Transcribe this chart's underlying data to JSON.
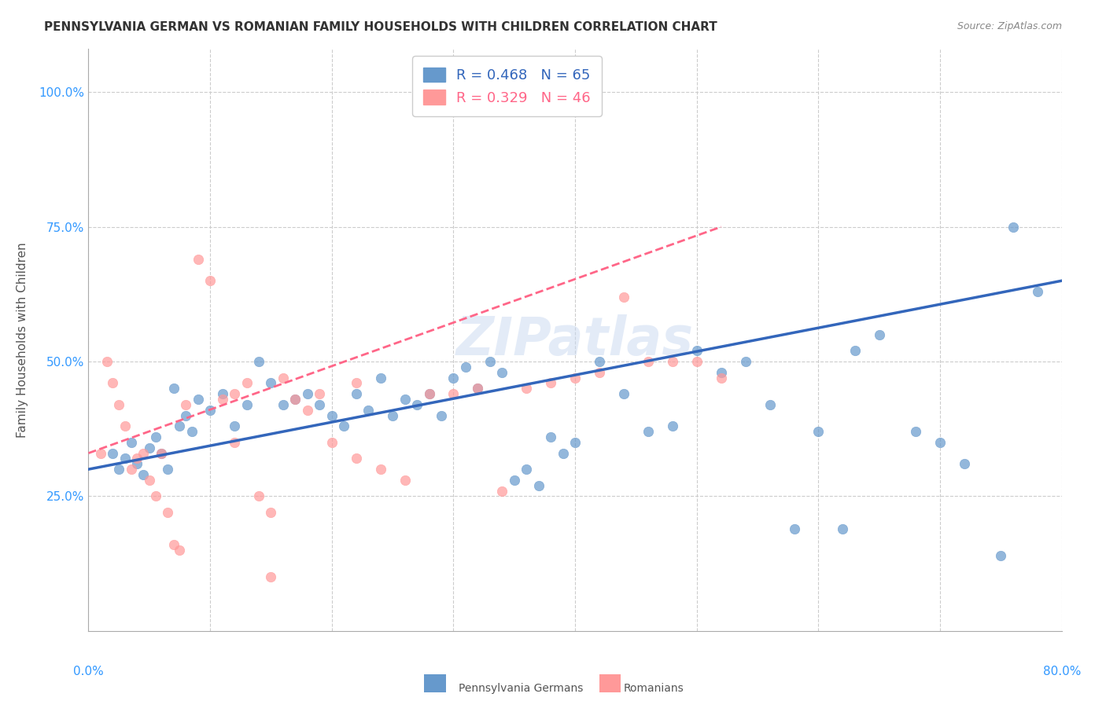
{
  "title": "PENNSYLVANIA GERMAN VS ROMANIAN FAMILY HOUSEHOLDS WITH CHILDREN CORRELATION CHART",
  "source": "Source: ZipAtlas.com",
  "ylabel": "Family Households with Children",
  "ytick_labels": [
    "25.0%",
    "50.0%",
    "75.0%",
    "100.0%"
  ],
  "ytick_values": [
    0.25,
    0.5,
    0.75,
    1.0
  ],
  "xmin": 0.0,
  "xmax": 0.8,
  "ymin": 0.0,
  "ymax": 1.08,
  "legend_line1": "R = 0.468   N = 65",
  "legend_line2": "R = 0.329   N = 46",
  "pa_german_color": "#6699cc",
  "romanian_color": "#ff9999",
  "pa_german_line_color": "#3366bb",
  "romanian_line_color": "#ff6688",
  "watermark": "ZIPatlas",
  "pa_german_scatter_x": [
    0.02,
    0.025,
    0.03,
    0.035,
    0.04,
    0.045,
    0.05,
    0.055,
    0.06,
    0.065,
    0.07,
    0.075,
    0.08,
    0.085,
    0.09,
    0.1,
    0.11,
    0.12,
    0.13,
    0.14,
    0.15,
    0.16,
    0.17,
    0.18,
    0.19,
    0.2,
    0.21,
    0.22,
    0.23,
    0.24,
    0.25,
    0.26,
    0.27,
    0.28,
    0.29,
    0.3,
    0.31,
    0.32,
    0.33,
    0.34,
    0.35,
    0.36,
    0.37,
    0.38,
    0.39,
    0.4,
    0.42,
    0.44,
    0.46,
    0.48,
    0.5,
    0.52,
    0.54,
    0.56,
    0.58,
    0.6,
    0.62,
    0.65,
    0.68,
    0.7,
    0.72,
    0.75,
    0.78,
    0.76,
    0.63
  ],
  "pa_german_scatter_y": [
    0.33,
    0.3,
    0.32,
    0.35,
    0.31,
    0.29,
    0.34,
    0.36,
    0.33,
    0.3,
    0.45,
    0.38,
    0.4,
    0.37,
    0.43,
    0.41,
    0.44,
    0.38,
    0.42,
    0.5,
    0.46,
    0.42,
    0.43,
    0.44,
    0.42,
    0.4,
    0.38,
    0.44,
    0.41,
    0.47,
    0.4,
    0.43,
    0.42,
    0.44,
    0.4,
    0.47,
    0.49,
    0.45,
    0.5,
    0.48,
    0.28,
    0.3,
    0.27,
    0.36,
    0.33,
    0.35,
    0.5,
    0.44,
    0.37,
    0.38,
    0.52,
    0.48,
    0.5,
    0.42,
    0.19,
    0.37,
    0.19,
    0.55,
    0.37,
    0.35,
    0.31,
    0.14,
    0.63,
    0.75,
    0.52
  ],
  "romanian_scatter_x": [
    0.01,
    0.015,
    0.02,
    0.025,
    0.03,
    0.035,
    0.04,
    0.045,
    0.05,
    0.055,
    0.06,
    0.065,
    0.07,
    0.075,
    0.08,
    0.09,
    0.1,
    0.11,
    0.12,
    0.13,
    0.14,
    0.15,
    0.16,
    0.17,
    0.18,
    0.19,
    0.2,
    0.22,
    0.24,
    0.26,
    0.28,
    0.3,
    0.32,
    0.34,
    0.36,
    0.38,
    0.4,
    0.42,
    0.44,
    0.46,
    0.48,
    0.5,
    0.52,
    0.12,
    0.22,
    0.15
  ],
  "romanian_scatter_y": [
    0.33,
    0.5,
    0.46,
    0.42,
    0.38,
    0.3,
    0.32,
    0.33,
    0.28,
    0.25,
    0.33,
    0.22,
    0.16,
    0.15,
    0.42,
    0.69,
    0.65,
    0.43,
    0.44,
    0.46,
    0.25,
    0.22,
    0.47,
    0.43,
    0.41,
    0.44,
    0.35,
    0.46,
    0.3,
    0.28,
    0.44,
    0.44,
    0.45,
    0.26,
    0.45,
    0.46,
    0.47,
    0.48,
    0.62,
    0.5,
    0.5,
    0.5,
    0.47,
    0.35,
    0.32,
    0.1
  ],
  "pa_trend_x": [
    0.0,
    0.8
  ],
  "pa_trend_y": [
    0.3,
    0.65
  ],
  "ro_trend_x": [
    0.0,
    0.52
  ],
  "ro_trend_y": [
    0.33,
    0.75
  ]
}
